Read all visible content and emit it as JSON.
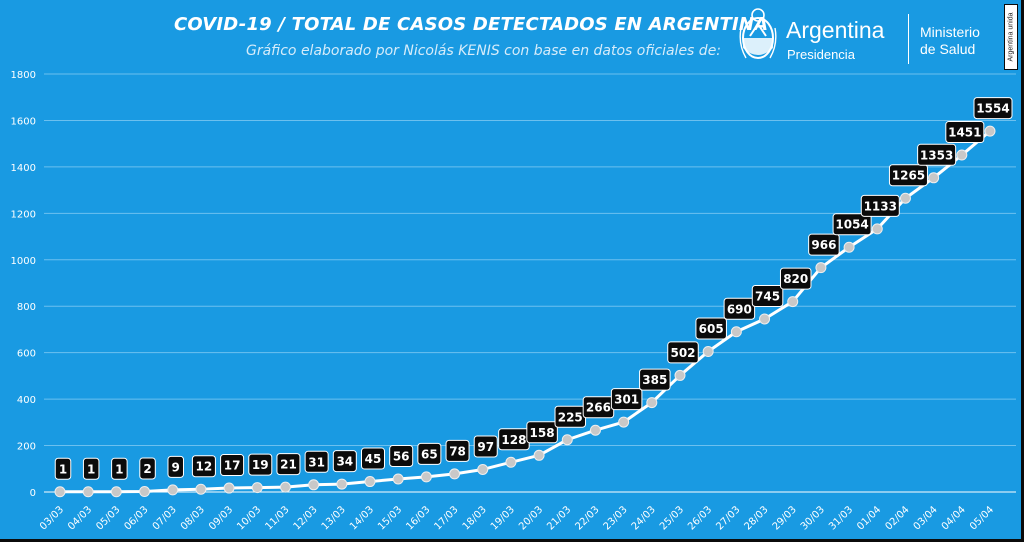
{
  "header": {
    "title": "COVID-19  /  TOTAL DE CASOS DETECTADOS EN ARGENTINA",
    "subtitle": "Gráfico elaborado por Nicolás KENIS con base en datos oficiales de:"
  },
  "logos": {
    "presidencia_word": "Argentina",
    "presidencia_sub": "Presidencia",
    "ministry_line1": "Ministerio",
    "ministry_line2": "de Salud",
    "badge_text": "Argentina unida"
  },
  "colors": {
    "background": "#199ae2",
    "line": "#ffffff",
    "marker": "#c8c8c8",
    "label_box": "#0b0b0b",
    "label_text": "#ffffff",
    "grid": "#6cc0ef"
  },
  "chart_data": {
    "type": "line",
    "title": "COVID-19  /  TOTAL DE CASOS DETECTADOS EN ARGENTINA",
    "xlabel": "",
    "ylabel": "",
    "ylim": [
      0,
      1800
    ],
    "yticks": [
      0,
      200,
      400,
      600,
      800,
      1000,
      1200,
      1400,
      1600,
      1800
    ],
    "grid": true,
    "legend": "none",
    "categories": [
      "03/03",
      "04/03",
      "05/03",
      "06/03",
      "07/03",
      "08/03",
      "09/03",
      "10/03",
      "11/03",
      "12/03",
      "13/03",
      "14/03",
      "15/03",
      "16/03",
      "17/03",
      "18/03",
      "19/03",
      "20/03",
      "21/03",
      "22/03",
      "23/03",
      "24/03",
      "25/03",
      "26/03",
      "27/03",
      "28/03",
      "29/03",
      "30/03",
      "31/03",
      "01/04",
      "02/04",
      "03/04",
      "04/04",
      "05/04"
    ],
    "values": [
      1,
      1,
      1,
      2,
      9,
      12,
      17,
      19,
      21,
      31,
      34,
      45,
      56,
      65,
      78,
      97,
      128,
      158,
      225,
      266,
      301,
      385,
      502,
      605,
      690,
      745,
      820,
      966,
      1054,
      1133,
      1265,
      1353,
      1451,
      1554
    ]
  }
}
